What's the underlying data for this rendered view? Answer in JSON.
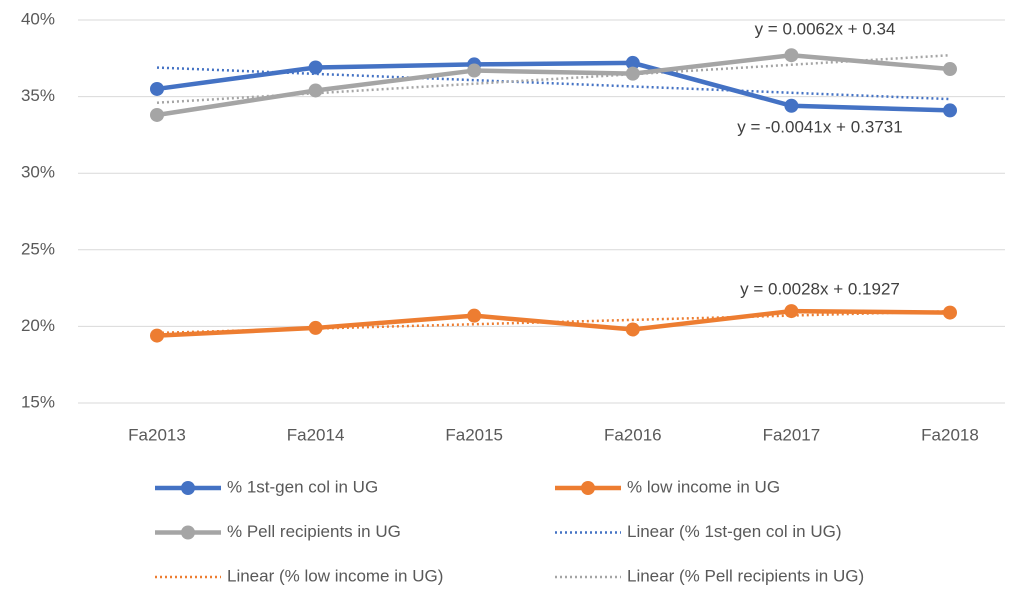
{
  "chart_data": {
    "type": "line",
    "categories": [
      "Fa2013",
      "Fa2014",
      "Fa2015",
      "Fa2016",
      "Fa2017",
      "Fa2018"
    ],
    "ylim": [
      15,
      40
    ],
    "yticks": [
      {
        "value": 15,
        "label": "15%"
      },
      {
        "value": 20,
        "label": "20%"
      },
      {
        "value": 25,
        "label": "25%"
      },
      {
        "value": 30,
        "label": "30%"
      },
      {
        "value": 35,
        "label": "35%"
      },
      {
        "value": 40,
        "label": "40%"
      }
    ],
    "grid": true,
    "legend": "bottom",
    "series": [
      {
        "name": "% 1st-gen col in UG",
        "color": "#4472c4",
        "values": [
          35.5,
          36.9,
          37.1,
          37.2,
          34.4,
          34.1
        ],
        "trendline": {
          "name": "Linear (% 1st-gen col in UG)",
          "equation": "y = -0.0041x + 0.3731"
        }
      },
      {
        "name": "% low income in UG",
        "color": "#ed7d31",
        "values": [
          19.4,
          19.9,
          20.7,
          19.8,
          21.0,
          20.9
        ],
        "trendline": {
          "name": "Linear (% low income in UG)",
          "equation": "y = 0.0028x + 0.1927"
        }
      },
      {
        "name": "% Pell recipients in UG",
        "color": "#a5a5a5",
        "values": [
          33.8,
          35.4,
          36.7,
          36.5,
          37.7,
          36.8
        ],
        "trendline": {
          "name": "Linear (% Pell recipients in UG)",
          "equation": "y = 0.0062x + 0.34"
        }
      }
    ]
  }
}
